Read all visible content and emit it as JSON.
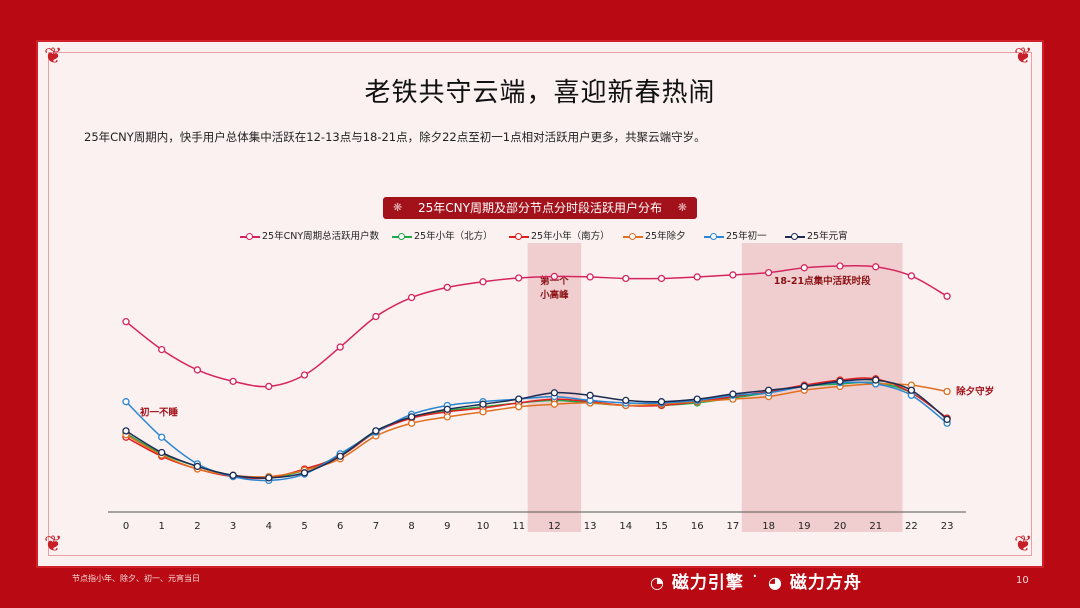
{
  "title": "老铁共守云端，喜迎新春热闹",
  "subtitle": "25年CNY周期内，快手用户总体集中活跃在12-13点与18-21点，除夕22点至初一1点相对活跃用户更多，共聚云端守岁。",
  "footnote": "节点指小年、除夕、初一、元宵当日",
  "page_number": "10",
  "brands": {
    "left": "磁力引擎",
    "separator": "·",
    "right": "磁力方舟"
  },
  "chart_data": {
    "type": "line",
    "title": "25年CNY周期及部分节点分时段活跃用户分布",
    "xlabel": "",
    "ylabel": "",
    "x": [
      "0",
      "1",
      "2",
      "3",
      "4",
      "5",
      "6",
      "7",
      "8",
      "9",
      "10",
      "11",
      "12",
      "13",
      "14",
      "15",
      "16",
      "17",
      "18",
      "19",
      "20",
      "21",
      "22",
      "23"
    ],
    "ylim": [
      0,
      100
    ],
    "grid": false,
    "legend_placement": "top",
    "series": [
      {
        "name": "25年CNY周期总活跃用户数",
        "color": "#d6245f",
        "values": [
          71,
          60,
          52,
          47.5,
          45.5,
          50,
          61,
          73,
          80.5,
          84.5,
          86.7,
          88.2,
          88.8,
          88.6,
          88,
          88,
          88.6,
          89.4,
          90.3,
          92.2,
          92.9,
          92.6,
          89,
          81
        ]
      },
      {
        "name": "25年小年（北方）",
        "color": "#1fa84a",
        "values": [
          27,
          19,
          14,
          10.5,
          9.5,
          12.5,
          18.5,
          28,
          33.5,
          36,
          37.5,
          39,
          40,
          39,
          38,
          38,
          39,
          41,
          43,
          45.5,
          46.5,
          47,
          43,
          33
        ]
      },
      {
        "name": "25年小年（南方）",
        "color": "#e01e1e",
        "values": [
          25.5,
          18,
          13,
          10,
          9.5,
          13,
          18,
          27.5,
          33,
          35.5,
          37,
          39,
          40.5,
          39.5,
          38,
          38,
          39.5,
          41.5,
          43.5,
          46,
          48,
          48.5,
          43,
          33
        ]
      },
      {
        "name": "25年除夕",
        "color": "#e07020",
        "label": "除夕守岁",
        "values": [
          26.5,
          18.5,
          13,
          10.5,
          10,
          12.5,
          17,
          26,
          31,
          33.5,
          35.5,
          37.5,
          38.5,
          39,
          38,
          38.5,
          39.5,
          40.5,
          41.5,
          44,
          45.5,
          46.5,
          46,
          43.5
        ]
      },
      {
        "name": "25年初一",
        "color": "#2a86d0",
        "label": "初一不睡",
        "values": [
          39.5,
          25.5,
          15,
          10,
          8.5,
          11,
          19,
          27.5,
          34.5,
          38,
          39.5,
          40.5,
          41.5,
          40,
          39,
          39,
          40,
          42,
          43,
          45.5,
          47,
          46.5,
          42,
          31
        ]
      },
      {
        "name": "25年元宵",
        "color": "#1b2b52",
        "values": [
          28,
          19.5,
          14,
          10.5,
          9.5,
          11.5,
          18,
          28,
          33.5,
          36.5,
          38.5,
          40.5,
          43,
          42,
          40,
          39.5,
          40.5,
          42.5,
          44,
          45.5,
          47.5,
          48,
          44,
          32.5
        ]
      }
    ],
    "highlights": [
      {
        "from": "12",
        "to": "12",
        "label": "第一个\n小高峰"
      },
      {
        "from": "18",
        "to": "21",
        "label": "18-21点集中活跃时段"
      }
    ]
  }
}
